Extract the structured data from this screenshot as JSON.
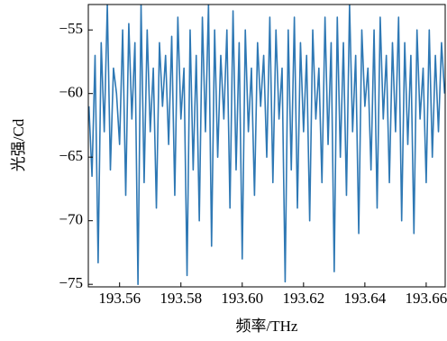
{
  "chart_data": {
    "type": "line",
    "xlabel": "频率/THz",
    "ylabel": "光强/Cd",
    "x": [
      193.55,
      193.551,
      193.552,
      193.553,
      193.554,
      193.555,
      193.556,
      193.557,
      193.558,
      193.559,
      193.56,
      193.561,
      193.562,
      193.563,
      193.564,
      193.565,
      193.566,
      193.567,
      193.568,
      193.569,
      193.57,
      193.571,
      193.572,
      193.573,
      193.574,
      193.575,
      193.576,
      193.577,
      193.578,
      193.579,
      193.58,
      193.581,
      193.582,
      193.583,
      193.584,
      193.585,
      193.586,
      193.587,
      193.588,
      193.589,
      193.59,
      193.591,
      193.592,
      193.593,
      193.594,
      193.595,
      193.596,
      193.597,
      193.598,
      193.599,
      193.6,
      193.601,
      193.602,
      193.603,
      193.604,
      193.605,
      193.606,
      193.607,
      193.608,
      193.609,
      193.61,
      193.611,
      193.612,
      193.613,
      193.614,
      193.615,
      193.616,
      193.617,
      193.618,
      193.619,
      193.62,
      193.621,
      193.622,
      193.623,
      193.624,
      193.625,
      193.626,
      193.627,
      193.628,
      193.629,
      193.63,
      193.631,
      193.632,
      193.633,
      193.634,
      193.635,
      193.636,
      193.637,
      193.638,
      193.639,
      193.64,
      193.641,
      193.642,
      193.643,
      193.644,
      193.645,
      193.646,
      193.647,
      193.648,
      193.649,
      193.65,
      193.651,
      193.652,
      193.653,
      193.654,
      193.655,
      193.656,
      193.657,
      193.658,
      193.659,
      193.66,
      193.661,
      193.662,
      193.663,
      193.664,
      193.665,
      193.666
    ],
    "series": [
      {
        "color": "#2e78b4",
        "values": [
          -61,
          -66.5,
          -57,
          -73.3,
          -56,
          -63,
          -53,
          -66,
          -58,
          -60,
          -64,
          -55,
          -68,
          -54.5,
          -62,
          -56,
          -75,
          -53,
          -67,
          -55,
          -63,
          -58,
          -69,
          -56,
          -61,
          -57,
          -64,
          -55.5,
          -68,
          -54,
          -62,
          -58,
          -74.3,
          -55,
          -66,
          -57,
          -70,
          -54,
          -63,
          -53,
          -72,
          -55,
          -65,
          -57,
          -62,
          -55,
          -69,
          -53.5,
          -66,
          -56,
          -73,
          -55,
          -63,
          -58,
          -68,
          -56,
          -61,
          -57,
          -65,
          -54,
          -67,
          -55,
          -62,
          -58,
          -74.8,
          -55,
          -66,
          -54,
          -69,
          -56,
          -63,
          -57,
          -70,
          -55,
          -62,
          -58,
          -67,
          -54,
          -64,
          -56,
          -74,
          -54,
          -65,
          -56,
          -68,
          -53,
          -63,
          -57,
          -71,
          -55,
          -61,
          -58,
          -66,
          -55,
          -69,
          -54,
          -62,
          -57,
          -67,
          -56,
          -63,
          -54,
          -70,
          -56,
          -64,
          -57,
          -71,
          -55,
          -62,
          -58,
          -67,
          -55,
          -65,
          -57,
          -63,
          -56,
          -60
        ]
      }
    ],
    "xlim": [
      193.5498,
      193.6662
    ],
    "ylim": [
      -75.2,
      -53
    ],
    "xticks": [
      193.56,
      193.58,
      {
        "value": 193.6,
        "label": "193.60"
      },
      193.62,
      193.64,
      193.66
    ],
    "yticks": [
      {
        "value": -55,
        "label": "−55"
      },
      {
        "value": -60,
        "label": "−60"
      },
      {
        "value": -65,
        "label": "−65"
      },
      {
        "value": -70,
        "label": "−70"
      },
      {
        "value": -75,
        "label": "−75"
      }
    ]
  }
}
